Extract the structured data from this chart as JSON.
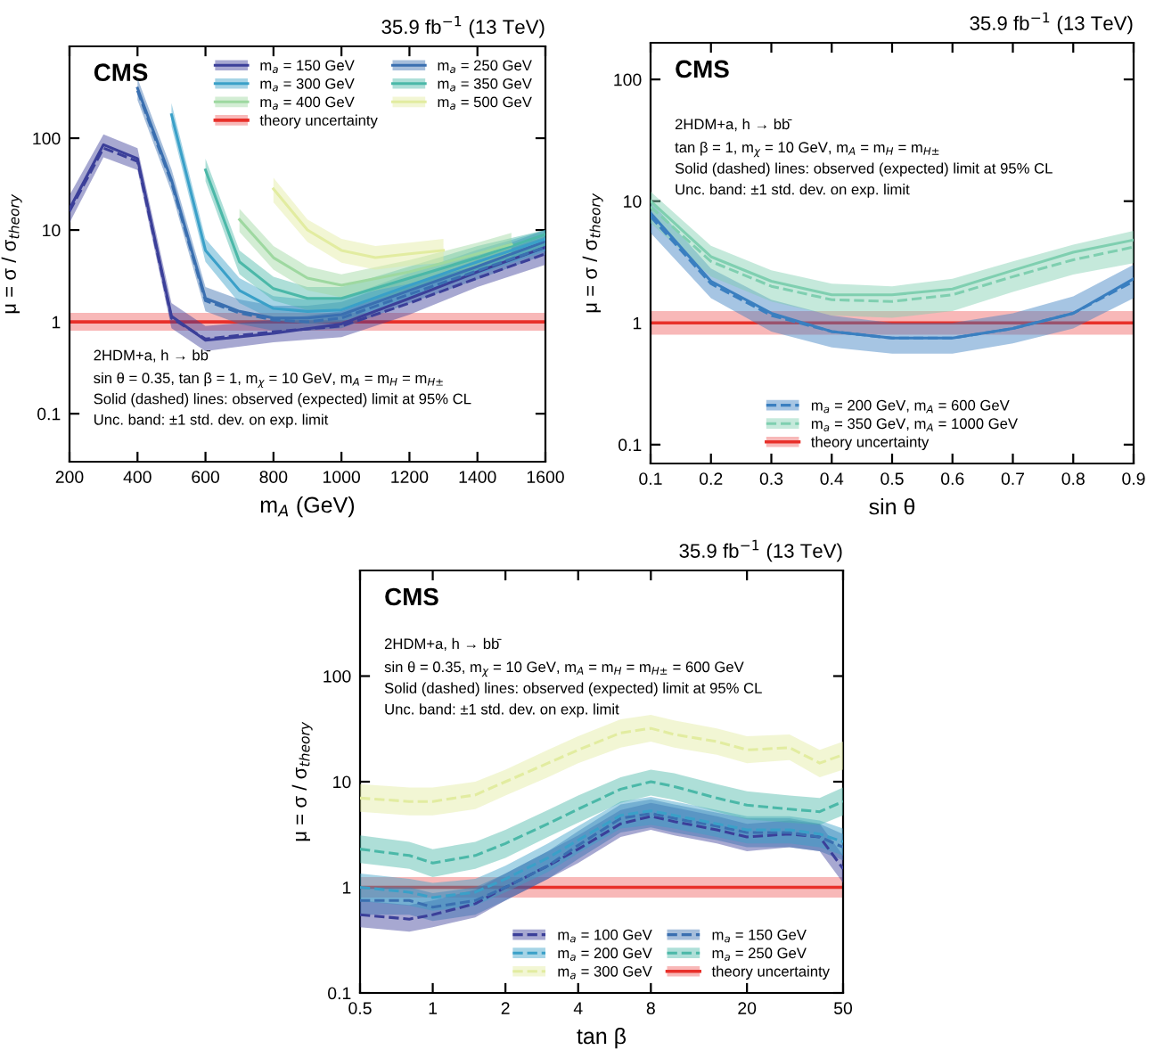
{
  "chart_data": [
    {
      "type": "line",
      "title": "CMS",
      "subtitle": "35.9 fb$^{−1}$ (13 TeV)",
      "xlabel": "m$_{A}$ (GeV)",
      "ylabel": "μ = σ / σ$_{theory}$",
      "annotations": [
        "2HDM+a, h → bb̄",
        "sin θ = 0.35, tan β = 1, m$_{χ}$ = 10 GeV, m$_{A}$ = m$_{H}$ = m$_{H±}$",
        "Solid (dashed) lines: observed (expected) limit at 95% CL",
        "Unc. band: ±1 std. dev. on exp. limit"
      ],
      "log": "y",
      "xlim": [
        200,
        1600
      ],
      "xticks": [
        200,
        400,
        600,
        800,
        1000,
        1200,
        1400,
        1600
      ],
      "ylim": [
        0.03,
        1000
      ],
      "yticks": [
        0.1,
        1,
        10,
        100
      ],
      "legend": "top right",
      "series": [
        {
          "name": "m$_{a}$ = 150 GeV",
          "color": "#3b3f99",
          "line_style": "solid",
          "x": [
            200,
            300,
            400,
            500,
            600,
            800,
            1000,
            1200,
            1400,
            1600
          ],
          "values": [
            17,
            85,
            60,
            1.15,
            0.63,
            0.75,
            0.95,
            1.8,
            3.5,
            6.5
          ],
          "lower": [
            12,
            62,
            45,
            0.85,
            0.48,
            0.6,
            0.68,
            1.2,
            2.4,
            4.2
          ],
          "upper": [
            24,
            110,
            78,
            1.6,
            0.9,
            1.05,
            1.3,
            2.5,
            4.8,
            8.5
          ]
        },
        {
          "color": "#3b3f99",
          "line_style": "dashed",
          "x": [
            200,
            300,
            400,
            500,
            600,
            800,
            1000,
            1200,
            1400,
            1600
          ],
          "values": [
            16,
            78,
            56,
            1.1,
            0.65,
            0.78,
            0.9,
            1.6,
            3,
            5.5
          ]
        },
        {
          "name": "m$_{a}$ = 250 GeV",
          "color": "#3a6fb0",
          "line_style": "solid",
          "x": [
            400,
            500,
            600,
            700,
            800,
            900,
            1000,
            1200,
            1400,
            1600
          ],
          "values": [
            350,
            35,
            1.8,
            1.3,
            1.1,
            1.1,
            1.2,
            2.2,
            4,
            7.5
          ],
          "lower": [
            260,
            26,
            1.3,
            0.95,
            0.8,
            0.8,
            0.85,
            1.6,
            2.9,
            5.4
          ],
          "upper": [
            450,
            46,
            2.4,
            1.75,
            1.5,
            1.5,
            1.65,
            3,
            5.4,
            10
          ]
        },
        {
          "color": "#3a6fb0",
          "line_style": "dashed",
          "x": [
            400,
            500,
            600,
            700,
            800,
            900,
            1000,
            1200,
            1400,
            1600
          ],
          "values": [
            330,
            33,
            1.7,
            1.25,
            1.05,
            1.0,
            1.1,
            2.0,
            3.6,
            6.5
          ]
        },
        {
          "name": "m$_{a}$ = 300 GeV",
          "color": "#3aa0c8",
          "line_style": "solid",
          "x": [
            500,
            600,
            700,
            800,
            900,
            1000,
            1200,
            1400,
            1600
          ],
          "values": [
            180,
            6,
            2.2,
            1.4,
            1.3,
            1.35,
            2.5,
            4.5,
            8
          ],
          "lower": [
            135,
            4.5,
            1.6,
            1.05,
            0.95,
            1.0,
            1.85,
            3.3,
            5.9
          ],
          "upper": [
            240,
            8,
            3,
            1.9,
            1.75,
            1.8,
            3.4,
            6.1,
            10
          ]
        },
        {
          "name": "m$_{a}$ = 350 GeV",
          "color": "#4bb8a8",
          "line_style": "solid",
          "x": [
            600,
            700,
            800,
            900,
            1000,
            1200,
            1400,
            1600
          ],
          "values": [
            45,
            4.5,
            2.3,
            1.8,
            1.8,
            3,
            5,
            9
          ],
          "lower": [
            34,
            3.3,
            1.7,
            1.35,
            1.35,
            2.2,
            3.7,
            6.6
          ],
          "upper": [
            60,
            6,
            3.1,
            2.4,
            2.4,
            4,
            6.7,
            10
          ]
        },
        {
          "name": "m$_{a}$ = 400 GeV",
          "color": "#9ed8a0",
          "line_style": "solid",
          "x": [
            700,
            800,
            900,
            1000,
            1200,
            1400,
            1500
          ],
          "values": [
            13,
            5,
            3,
            2.5,
            3.5,
            5.5,
            7
          ],
          "lower": [
            9.5,
            3.7,
            2.2,
            1.85,
            2.6,
            4.1,
            5.2
          ],
          "upper": [
            17,
            6.7,
            4,
            3.3,
            4.7,
            7.3,
            9.3
          ]
        },
        {
          "name": "m$_{a}$ = 500 GeV",
          "color": "#e2eca0",
          "line_style": "solid",
          "x": [
            800,
            900,
            1000,
            1100,
            1200,
            1300
          ],
          "values": [
            28,
            10,
            6,
            5,
            5.5,
            6
          ],
          "lower": [
            20,
            7.4,
            4.4,
            3.7,
            4.1,
            4.4
          ],
          "upper": [
            37,
            13,
            8,
            6.7,
            7.3,
            8
          ]
        }
      ],
      "ref_lines": [
        {
          "axis": "y",
          "value": 1,
          "label": "theory uncertainty",
          "color": "#e8302a"
        }
      ],
      "bands": [
        {
          "axis": "y",
          "from": 0.8,
          "to": 1.25,
          "color": "#f6a6a6"
        }
      ]
    },
    {
      "type": "line",
      "title": "CMS",
      "subtitle": "35.9 fb$^{−1}$ (13 TeV)",
      "xlabel": "sin θ",
      "ylabel": "μ = σ / σ$_{theory}$",
      "annotations": [
        "2HDM+a, h → bb̄",
        "tan β = 1, m$_{χ}$ = 10 GeV, m$_{A}$ = m$_{H}$ = m$_{H±}$",
        "Solid (dashed) lines: observed (expected) limit at 95% CL",
        "Unc. band: ±1 std. dev. on exp. limit"
      ],
      "log": "y",
      "xlim": [
        0.1,
        0.9
      ],
      "xticks": [
        0.1,
        0.2,
        0.3,
        0.4,
        0.5,
        0.6,
        0.7,
        0.8,
        0.9
      ],
      "ylim": [
        0.07,
        200
      ],
      "yticks": [
        0.1,
        1,
        10,
        100
      ],
      "legend": "bottom",
      "series": [
        {
          "name": "m$_{a}$ = 200 GeV, m$_{A}$ = 600 GeV",
          "color": "#3a7fc0",
          "line_style": "dashed",
          "x": [
            0.1,
            0.2,
            0.3,
            0.4,
            0.5,
            0.6,
            0.7,
            0.8,
            0.9
          ],
          "values": [
            7.5,
            2.1,
            1.15,
            0.85,
            0.75,
            0.75,
            0.9,
            1.2,
            2.2
          ],
          "lower": [
            5.5,
            1.6,
            0.85,
            0.63,
            0.56,
            0.56,
            0.68,
            0.9,
            1.6
          ],
          "upper": [
            10,
            2.8,
            1.55,
            1.15,
            1.0,
            1.0,
            1.2,
            1.65,
            3
          ]
        },
        {
          "color": "#3a7fc0",
          "line_style": "solid",
          "x": [
            0.1,
            0.2,
            0.3,
            0.4,
            0.5,
            0.6,
            0.7,
            0.8,
            0.9
          ],
          "values": [
            8,
            2.2,
            1.2,
            0.85,
            0.75,
            0.75,
            0.9,
            1.2,
            2.3
          ]
        },
        {
          "name": "m$_{a}$ = 350 GeV, m$_{A}$ = 1000 GeV",
          "color": "#7fcfb0",
          "line_style": "dashed",
          "x": [
            0.1,
            0.2,
            0.3,
            0.4,
            0.5,
            0.6,
            0.7,
            0.8,
            0.9
          ],
          "values": [
            9,
            3.2,
            2,
            1.55,
            1.5,
            1.7,
            2.4,
            3.3,
            4.2
          ],
          "lower": [
            6.6,
            2.4,
            1.5,
            1.15,
            1.1,
            1.25,
            1.8,
            2.5,
            3.1
          ],
          "upper": [
            12,
            4.3,
            2.7,
            2.1,
            2.0,
            2.3,
            3.2,
            4.4,
            5.7
          ]
        },
        {
          "color": "#7fcfb0",
          "line_style": "solid",
          "x": [
            0.1,
            0.2,
            0.3,
            0.4,
            0.5,
            0.6,
            0.7,
            0.8,
            0.9
          ],
          "values": [
            10,
            3.5,
            2.2,
            1.7,
            1.7,
            1.9,
            2.7,
            3.8,
            4.8
          ]
        }
      ],
      "ref_lines": [
        {
          "axis": "y",
          "value": 1,
          "label": "theory uncertainty",
          "color": "#e8302a"
        }
      ],
      "bands": [
        {
          "axis": "y",
          "from": 0.8,
          "to": 1.25,
          "color": "#f6a6a6"
        }
      ]
    },
    {
      "type": "line",
      "title": "CMS",
      "subtitle": "35.9 fb$^{−1}$ (13 TeV)",
      "xlabel": "tan β",
      "ylabel": "μ = σ / σ$_{theory}$",
      "annotations": [
        "2HDM+a, h → bb̄",
        "sin θ = 0.35, m$_{χ}$ = 10 GeV, m$_{A}$ = m$_{H}$ = m$_{H±}$ = 600 GeV",
        "Solid (dashed) lines: observed (expected) limit at 95% CL",
        "Unc. band: ±1 std. dev. on exp. limit"
      ],
      "log": "xy",
      "xlim": [
        0.5,
        50
      ],
      "xticks": [
        0.5,
        1,
        2,
        4,
        8,
        20,
        50
      ],
      "ylim": [
        0.1,
        1000
      ],
      "yticks": [
        0.1,
        1,
        10,
        100
      ],
      "legend": "bottom right",
      "series": [
        {
          "name": "m$_{a}$ = 100 GeV",
          "color": "#3b3f99",
          "line_style": "dashed",
          "x": [
            0.5,
            0.8,
            1,
            1.5,
            2,
            3,
            4,
            6,
            8,
            10,
            15,
            20,
            30,
            40,
            50
          ],
          "values": [
            0.55,
            0.5,
            0.55,
            0.7,
            1.0,
            1.6,
            2.3,
            4.0,
            4.7,
            4.2,
            3.5,
            3.0,
            3.2,
            3.0,
            1.5
          ],
          "lower": [
            0.42,
            0.38,
            0.42,
            0.52,
            0.75,
            1.2,
            1.7,
            3.0,
            3.5,
            3.1,
            2.6,
            2.2,
            2.4,
            2.2,
            1.1
          ],
          "upper": [
            0.75,
            0.68,
            0.75,
            0.95,
            1.35,
            2.2,
            3.1,
            5.4,
            6.3,
            5.7,
            4.7,
            4.0,
            4.3,
            4.0,
            2.0
          ]
        },
        {
          "name": "m$_{a}$ = 150 GeV",
          "color": "#3a6fb0",
          "line_style": "dashed",
          "x": [
            0.5,
            0.8,
            1,
            1.5,
            2,
            3,
            4,
            6,
            8,
            10,
            15,
            20,
            30,
            40,
            50
          ],
          "values": [
            0.75,
            0.75,
            0.65,
            0.75,
            1.0,
            1.6,
            2.5,
            4.5,
            5.0,
            4.5,
            3.8,
            3.3,
            3.3,
            3.0,
            2.4
          ],
          "lower": [
            0.55,
            0.55,
            0.48,
            0.55,
            0.75,
            1.2,
            1.85,
            3.3,
            3.7,
            3.3,
            2.8,
            2.4,
            2.4,
            2.2,
            1.8
          ],
          "upper": [
            1.0,
            1.0,
            0.88,
            1.0,
            1.35,
            2.2,
            3.4,
            6.1,
            6.8,
            6.1,
            5.1,
            4.5,
            4.5,
            4.0,
            3.2
          ]
        },
        {
          "name": "m$_{a}$ = 200 GeV",
          "color": "#3aa0c8",
          "line_style": "dashed",
          "x": [
            0.5,
            0.8,
            1,
            1.5,
            2,
            3,
            4,
            6,
            8,
            10,
            15,
            20,
            30,
            40,
            50
          ],
          "values": [
            1.0,
            0.9,
            0.8,
            0.9,
            1.2,
            1.9,
            2.8,
            4.8,
            5.3,
            4.8,
            4.0,
            3.5,
            3.5,
            3.2,
            2.7
          ],
          "lower": [
            0.74,
            0.67,
            0.6,
            0.67,
            0.9,
            1.4,
            2.1,
            3.6,
            3.9,
            3.6,
            3.0,
            2.6,
            2.6,
            2.4,
            2.0
          ],
          "upper": [
            1.35,
            1.2,
            1.1,
            1.2,
            1.6,
            2.6,
            3.8,
            6.5,
            7.2,
            6.5,
            5.4,
            4.7,
            4.7,
            4.3,
            3.6
          ]
        },
        {
          "name": "m$_{a}$ = 250 GeV",
          "color": "#4bb8a8",
          "line_style": "dashed",
          "x": [
            0.5,
            0.8,
            1,
            1.5,
            2,
            3,
            4,
            6,
            8,
            10,
            15,
            20,
            30,
            40,
            50
          ],
          "values": [
            2.3,
            2.0,
            1.7,
            2.0,
            2.6,
            4,
            5.5,
            8.5,
            10,
            9,
            7,
            6,
            5.5,
            5.2,
            6.5
          ],
          "lower": [
            1.7,
            1.5,
            1.25,
            1.5,
            1.9,
            3.0,
            4.1,
            6.3,
            7.4,
            6.7,
            5.2,
            4.4,
            4.1,
            3.9,
            4.8
          ],
          "upper": [
            3.1,
            2.7,
            2.3,
            2.7,
            3.5,
            5.4,
            7.4,
            11,
            13,
            12,
            9.5,
            8.1,
            7.4,
            7.0,
            8.8
          ]
        },
        {
          "name": "m$_{a}$ = 300 GeV",
          "color": "#e2eca0",
          "line_style": "dashed",
          "x": [
            0.5,
            0.8,
            1,
            1.5,
            2,
            3,
            4,
            6,
            8,
            10,
            15,
            20,
            30,
            40,
            50
          ],
          "values": [
            7,
            6.5,
            6.5,
            7.5,
            10,
            15,
            20,
            29,
            32,
            28,
            24,
            20,
            21,
            15,
            18
          ],
          "lower": [
            5.2,
            4.8,
            4.8,
            5.5,
            7.4,
            11,
            15,
            21,
            24,
            21,
            18,
            15,
            16,
            11,
            13
          ],
          "upper": [
            9.5,
            8.8,
            8.8,
            10,
            13,
            20,
            27,
            39,
            43,
            38,
            32,
            27,
            28,
            20,
            24
          ]
        }
      ],
      "ref_lines": [
        {
          "axis": "y",
          "value": 1,
          "label": "theory uncertainty",
          "color": "#e8302a"
        }
      ],
      "bands": [
        {
          "axis": "y",
          "from": 0.8,
          "to": 1.25,
          "color": "#f6a6a6"
        }
      ]
    }
  ]
}
